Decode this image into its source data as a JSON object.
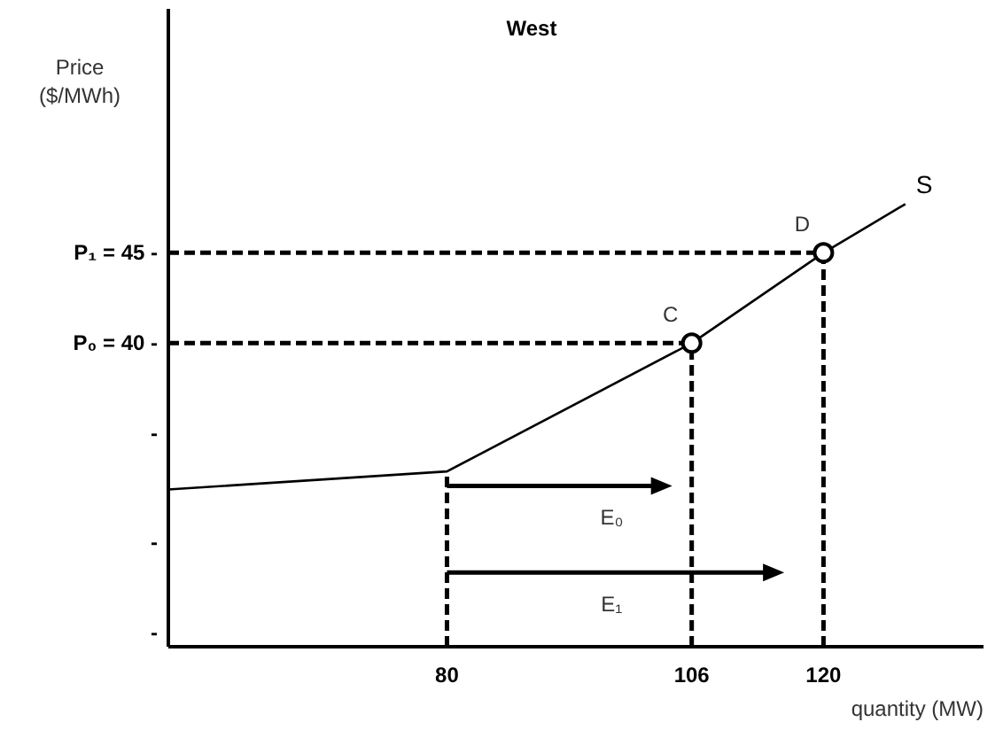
{
  "chart_data": {
    "type": "line",
    "title": "West",
    "xlabel": "quantity (MW)",
    "ylabel": "Price\n($/MWh)",
    "xlim": [
      50.4,
      137
    ],
    "ylim": [
      23.2,
      58.5
    ],
    "xticks": [
      80,
      106,
      120
    ],
    "yticks": [
      {
        "value": 24,
        "label": "-"
      },
      {
        "value": 29,
        "label": "-"
      },
      {
        "value": 35,
        "label": "-"
      },
      {
        "value": 40,
        "label": "P₀ = 40 -"
      },
      {
        "value": 45,
        "label": "P₁ = 45 -"
      }
    ],
    "legend": false,
    "grid": false,
    "series": [
      {
        "name": "S",
        "color": "#000000",
        "x": [
          50.4,
          80,
          106,
          120,
          128.7
        ],
        "values": [
          31.9,
          32.9,
          40,
          45,
          47.7
        ]
      },
      {
        "line_style": "dashed",
        "color": "#000000",
        "x": [
          50.4,
          120
        ],
        "values": [
          45,
          45
        ]
      },
      {
        "line_style": "dashed",
        "color": "#000000",
        "x": [
          50.4,
          106
        ],
        "values": [
          40,
          40
        ]
      },
      {
        "line_style": "dashed",
        "color": "#000000",
        "x": [
          80,
          80
        ],
        "values": [
          23.2,
          32.9
        ]
      },
      {
        "line_style": "dashed",
        "color": "#000000",
        "x": [
          106,
          106
        ],
        "values": [
          23.2,
          40
        ]
      },
      {
        "line_style": "dashed",
        "color": "#000000",
        "x": [
          120,
          120
        ],
        "values": [
          23.2,
          45
        ]
      },
      {
        "marker": "triangle",
        "color": "#000000",
        "x": [
          80,
          102.8
        ],
        "values": [
          32.1,
          32.1
        ]
      },
      {
        "marker": "triangle",
        "color": "#000000",
        "x": [
          80,
          114.7
        ],
        "values": [
          27.3,
          27.3
        ]
      },
      {
        "type": "scatter",
        "marker": "circle",
        "color": "#000000",
        "x": [
          106,
          120
        ],
        "values": [
          40,
          45
        ]
      }
    ],
    "annotations": [
      {
        "text": "C",
        "x": 106,
        "y": 40
      },
      {
        "text": "D",
        "x": 120,
        "y": 45
      },
      {
        "text": "E₀",
        "x": 97.5,
        "y": 32.1
      },
      {
        "text": "E₁",
        "x": 97.5,
        "y": 27.3
      }
    ]
  }
}
